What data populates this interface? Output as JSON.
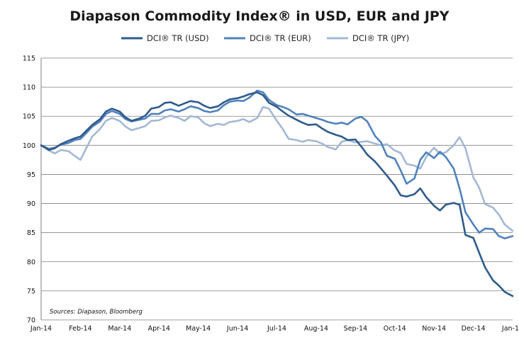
{
  "chart_data": {
    "type": "line",
    "title": "Diapason Commodity Index® in USD, EUR and JPY",
    "xlabel": "",
    "ylabel": "",
    "ylim": [
      70,
      115
    ],
    "yticks": [
      "70",
      "75",
      "80",
      "85",
      "90",
      "95",
      "100",
      "105",
      "110",
      "115"
    ],
    "xticks": [
      "Jan-14",
      "Feb-14",
      "Mar-14",
      "Apr-14",
      "May-14",
      "Jun-14",
      "Jul-14",
      "Aug-14",
      "Sep-14",
      "Oct-14",
      "Nov-14",
      "Dec-14",
      "Jan-15"
    ],
    "grid": "horizontal",
    "legend_position": "top",
    "annotation": "Sources: Diapason, Bloomberg",
    "x_unit": "months from Jan-14",
    "series": [
      {
        "name": "DCI® TR (USD)",
        "color": "#2e5b8c",
        "x": [
          0,
          0.2,
          0.35,
          0.5,
          0.7,
          0.85,
          1.0,
          1.15,
          1.3,
          1.5,
          1.65,
          1.8,
          2.0,
          2.15,
          2.3,
          2.5,
          2.65,
          2.8,
          3.0,
          3.15,
          3.3,
          3.5,
          3.65,
          3.8,
          4.0,
          4.15,
          4.3,
          4.5,
          4.65,
          4.8,
          5.0,
          5.15,
          5.3,
          5.5,
          5.65,
          5.8,
          6.0,
          6.15,
          6.3,
          6.5,
          6.65,
          6.8,
          7.0,
          7.15,
          7.3,
          7.5,
          7.65,
          7.8,
          8.0,
          8.15,
          8.3,
          8.5,
          8.65,
          8.8,
          9.0,
          9.15,
          9.3,
          9.5,
          9.65,
          9.8,
          10.0,
          10.15,
          10.3,
          10.5,
          10.65,
          10.8,
          11.0,
          11.15,
          11.3,
          11.5,
          11.65,
          11.8,
          12.0
        ],
        "values": [
          100,
          99.2,
          99.5,
          100.2,
          100.8,
          101.2,
          101.5,
          102.5,
          103.5,
          104.5,
          105.8,
          106.3,
          105.8,
          104.8,
          104.2,
          104.6,
          105.1,
          106.3,
          106.6,
          107.3,
          107.4,
          106.8,
          107.2,
          107.6,
          107.4,
          106.8,
          106.4,
          106.7,
          107.4,
          107.9,
          108.1,
          108.4,
          108.8,
          109.1,
          108.6,
          107.3,
          106.6,
          105.8,
          105.1,
          104.4,
          103.9,
          103.5,
          103.6,
          102.9,
          102.3,
          101.8,
          101.5,
          100.9,
          101.0,
          99.8,
          98.4,
          97.2,
          96.0,
          94.8,
          93.1,
          91.4,
          91.2,
          91.6,
          92.6,
          91.1,
          89.6,
          88.8,
          89.8,
          90.1,
          89.8,
          84.6,
          84.1,
          81.5,
          79.0,
          76.8,
          75.9,
          74.8,
          74.1
        ]
      },
      {
        "name": "DCI® TR (EUR)",
        "color": "#4f81bd",
        "x": [
          0,
          0.2,
          0.35,
          0.5,
          0.7,
          0.85,
          1.0,
          1.15,
          1.3,
          1.5,
          1.65,
          1.8,
          2.0,
          2.15,
          2.3,
          2.5,
          2.65,
          2.8,
          3.0,
          3.15,
          3.3,
          3.5,
          3.65,
          3.8,
          4.0,
          4.15,
          4.3,
          4.5,
          4.65,
          4.8,
          5.0,
          5.15,
          5.3,
          5.5,
          5.65,
          5.8,
          6.0,
          6.15,
          6.3,
          6.5,
          6.65,
          6.8,
          7.0,
          7.15,
          7.3,
          7.5,
          7.65,
          7.8,
          8.0,
          8.15,
          8.3,
          8.5,
          8.65,
          8.8,
          9.0,
          9.15,
          9.3,
          9.5,
          9.65,
          9.8,
          10.0,
          10.15,
          10.3,
          10.5,
          10.65,
          10.8,
          11.0,
          11.15,
          11.3,
          11.5,
          11.65,
          11.8,
          12.0
        ],
        "values": [
          100,
          99.4,
          99.6,
          100.1,
          100.4,
          100.9,
          101.1,
          102.1,
          103.2,
          104.1,
          105.4,
          105.9,
          105.4,
          104.5,
          104.1,
          104.4,
          104.6,
          105.4,
          105.4,
          106.0,
          106.2,
          105.8,
          106.2,
          106.7,
          106.4,
          105.9,
          105.7,
          106.0,
          106.9,
          107.5,
          107.7,
          107.6,
          108.2,
          109.4,
          109.1,
          107.8,
          106.9,
          106.6,
          106.2,
          105.3,
          105.4,
          105.1,
          104.7,
          104.4,
          104.0,
          103.7,
          103.9,
          103.6,
          104.6,
          104.9,
          104.1,
          101.6,
          100.5,
          98.2,
          97.7,
          95.7,
          93.4,
          94.3,
          97.5,
          98.8,
          97.8,
          98.9,
          98.0,
          96.0,
          92.6,
          88.5,
          86.4,
          85.0,
          85.7,
          85.6,
          84.4,
          84.0,
          84.4
        ]
      },
      {
        "name": "DCI® TR (JPY)",
        "color": "#a3b8d6",
        "x": [
          0,
          0.2,
          0.35,
          0.5,
          0.7,
          0.85,
          1.0,
          1.15,
          1.3,
          1.5,
          1.65,
          1.8,
          2.0,
          2.15,
          2.3,
          2.5,
          2.65,
          2.8,
          3.0,
          3.15,
          3.3,
          3.5,
          3.65,
          3.8,
          4.0,
          4.15,
          4.3,
          4.5,
          4.65,
          4.8,
          5.0,
          5.15,
          5.3,
          5.5,
          5.65,
          5.8,
          6.0,
          6.15,
          6.3,
          6.5,
          6.65,
          6.8,
          7.0,
          7.15,
          7.3,
          7.5,
          7.65,
          7.8,
          8.0,
          8.15,
          8.3,
          8.5,
          8.65,
          8.8,
          9.0,
          9.15,
          9.3,
          9.5,
          9.65,
          9.8,
          10.0,
          10.15,
          10.3,
          10.5,
          10.65,
          10.8,
          11.0,
          11.15,
          11.3,
          11.5,
          11.65,
          11.8,
          12.0
        ],
        "values": [
          100,
          99.1,
          98.6,
          99.2,
          99.0,
          98.2,
          97.5,
          99.5,
          101.5,
          102.8,
          104.2,
          104.7,
          104.2,
          103.2,
          102.6,
          103.0,
          103.3,
          104.2,
          104.3,
          104.8,
          105.1,
          104.7,
          104.2,
          105.0,
          104.8,
          103.8,
          103.3,
          103.7,
          103.5,
          104.0,
          104.2,
          104.5,
          104.0,
          104.7,
          106.6,
          106.3,
          104.2,
          102.8,
          101.1,
          100.9,
          100.6,
          100.9,
          100.7,
          100.3,
          99.7,
          99.3,
          100.6,
          100.9,
          100.5,
          100.6,
          100.7,
          100.3,
          100.0,
          100.2,
          99.1,
          98.7,
          96.8,
          96.5,
          96.0,
          98.0,
          99.6,
          98.5,
          98.8,
          100.0,
          101.4,
          99.5,
          94.5,
          92.7,
          89.9,
          89.3,
          88.1,
          86.4,
          85.3
        ]
      }
    ]
  }
}
